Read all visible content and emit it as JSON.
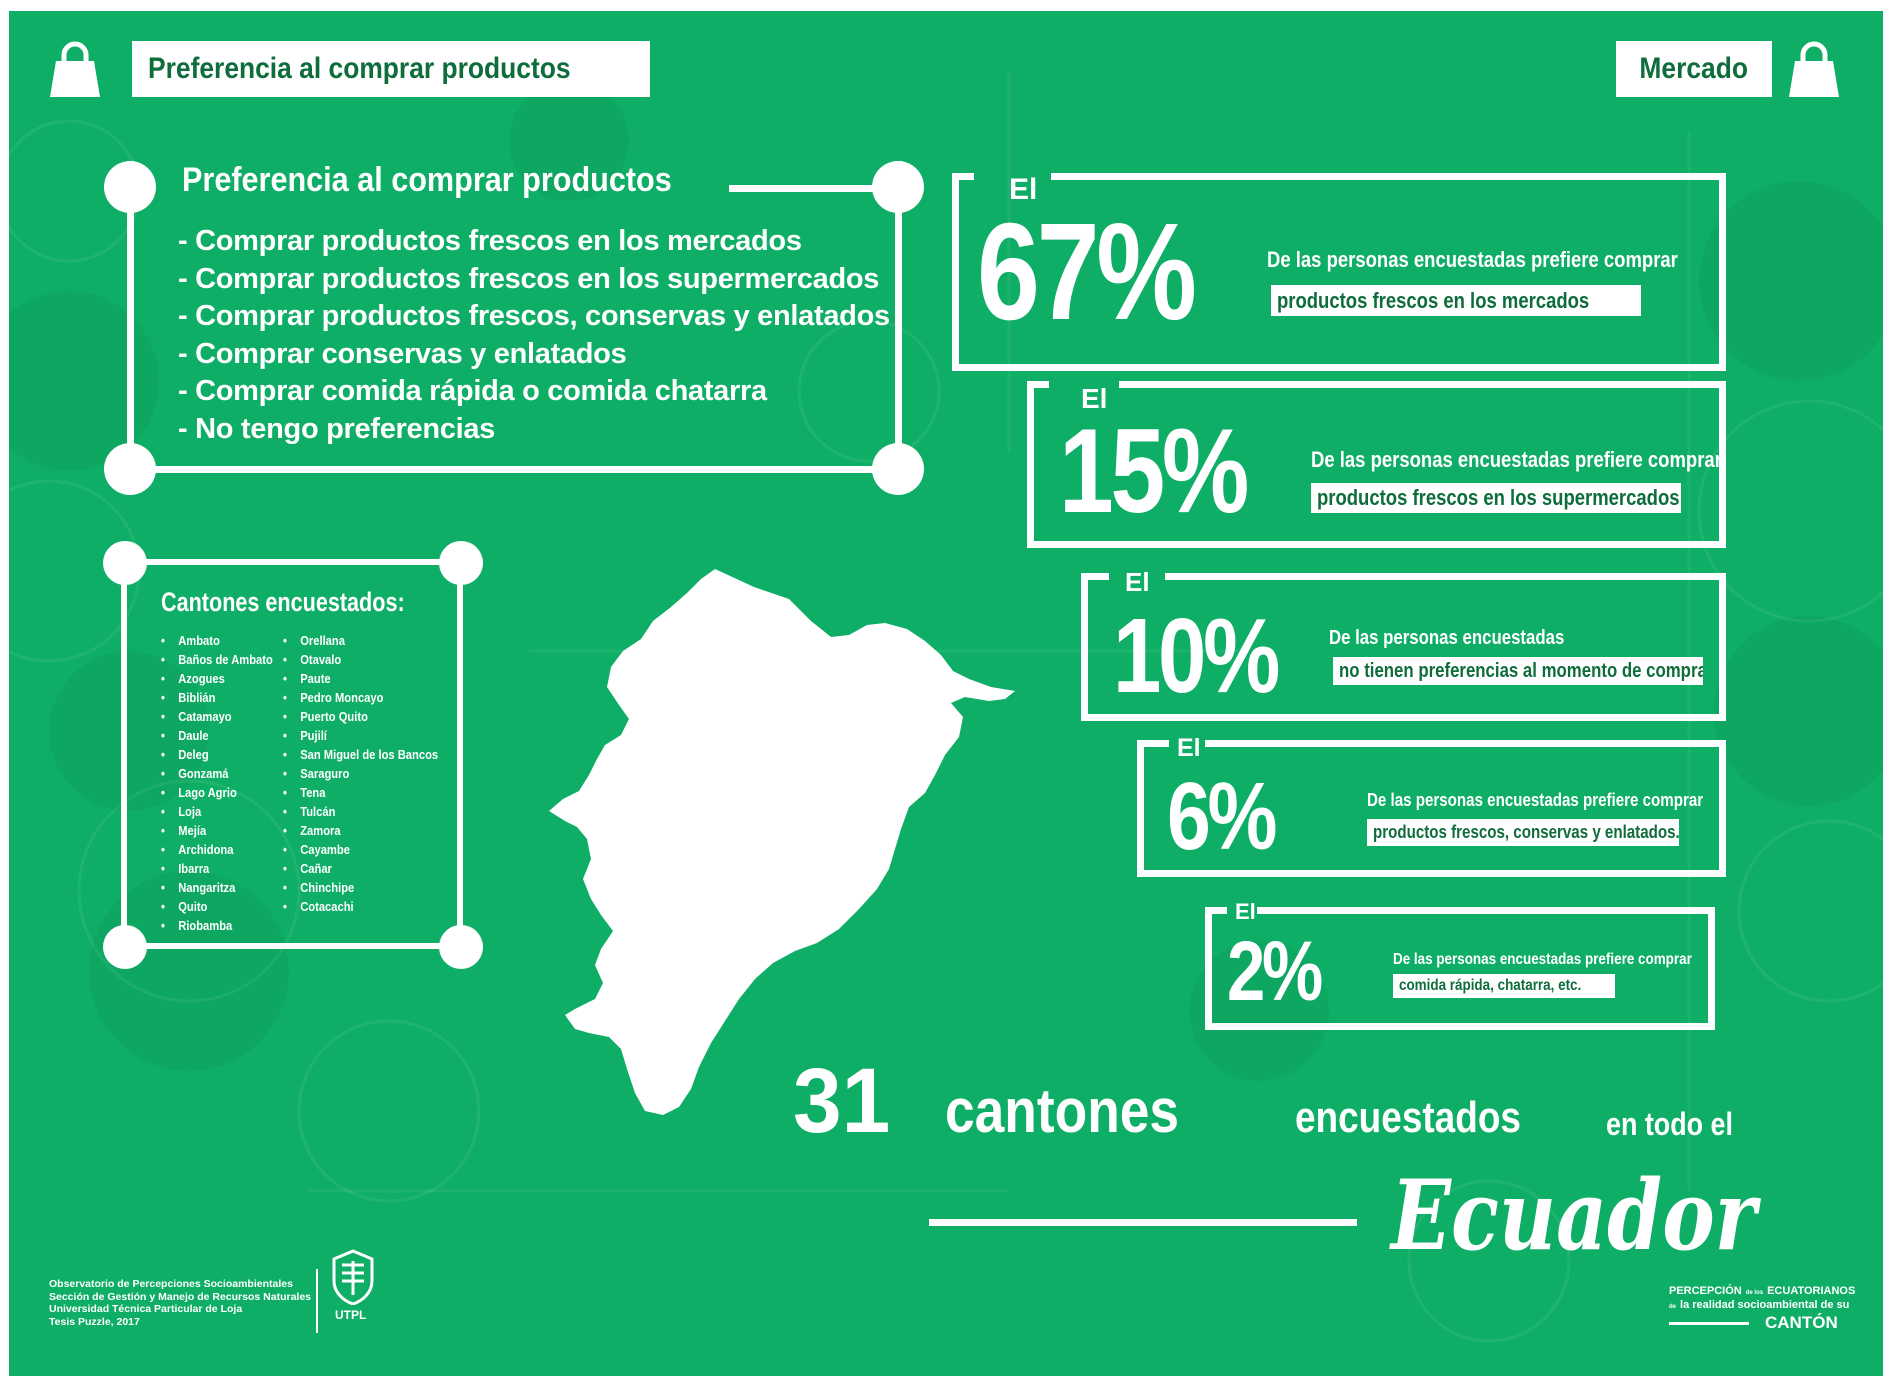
{
  "header": {
    "left_title": "Preferencia al comprar productos",
    "right_title": "Mercado",
    "left_bag_icon": "shopping-bag-icon",
    "right_bag_icon": "shopping-bag-icon"
  },
  "preferences": {
    "title": "Preferencia al comprar productos",
    "items": [
      "- Comprar productos frescos en los mercados",
      "- Comprar productos frescos en los supermercados",
      "- Comprar productos frescos, conservas y enlatados",
      "- Comprar conservas y enlatados",
      "- Comprar comida rápida o comida chatarra",
      "- No tengo preferencias"
    ]
  },
  "cantons": {
    "title": "Cantones encuestados:",
    "column1": [
      "Ambato",
      "Baños de Ambato",
      "Azogues",
      "Biblián",
      "Catamayo",
      "Daule",
      "Deleg",
      "Gonzamá",
      "Lago Agrio",
      "Loja",
      "Mejía",
      "Archidona",
      "Ibarra",
      "Nangaritza",
      "Quito",
      "Riobamba"
    ],
    "column2": [
      "Orellana",
      "Otavalo",
      "Paute",
      "Pedro Moncayo",
      "Puerto Quito",
      "Pujilí",
      "San Miguel de los Bancos",
      "Saraguro",
      "Tena",
      "Tulcán",
      "Zamora",
      "Cayambe",
      "Cañar",
      "Chinchipe",
      "Cotacachi"
    ]
  },
  "stats": [
    {
      "prefix": "El",
      "percent": "67%",
      "text": "De las personas encuestadas prefiere comprar",
      "highlight": "productos frescos en los mercados"
    },
    {
      "prefix": "El",
      "percent": "15%",
      "text": "De las personas encuestadas prefiere comprar",
      "highlight": "productos frescos en los supermercados"
    },
    {
      "prefix": "El",
      "percent": "10%",
      "text": "De las personas encuestadas",
      "highlight": "no tienen preferencias al momento de comprar"
    },
    {
      "prefix": "El",
      "percent": "6%",
      "text": "De las personas encuestadas prefiere comprar",
      "highlight": "productos frescos, conservas y enlatados."
    },
    {
      "prefix": "El",
      "percent": "2%",
      "text": "De las personas encuestadas prefiere comprar",
      "highlight": "comida rápida, chatarra, etc."
    }
  ],
  "summary": {
    "number": "31",
    "word1": "cantones",
    "word2": "encuestados",
    "word3": "en todo el",
    "country": "Ecuador"
  },
  "footer": {
    "lines": [
      "Observatorio de Percepciones Socioambientales",
      "Sección de Gestión y Manejo de Recursos Naturales",
      "Universidad Técnica Particular de Loja",
      "Tesis Puzzle, 2017"
    ],
    "logo_label": "UTPL",
    "brand": {
      "line1a": "PERCEPCIÓN",
      "line1b": "de los",
      "line1c": "ECUATORIANOS",
      "line2a": "de",
      "line2b": "la realidad socioambiental de su",
      "line3": "CANTÓN"
    }
  },
  "colors": {
    "background": "#0fae66",
    "accent_text": "#0f6d3c",
    "foreground": "#ffffff"
  }
}
